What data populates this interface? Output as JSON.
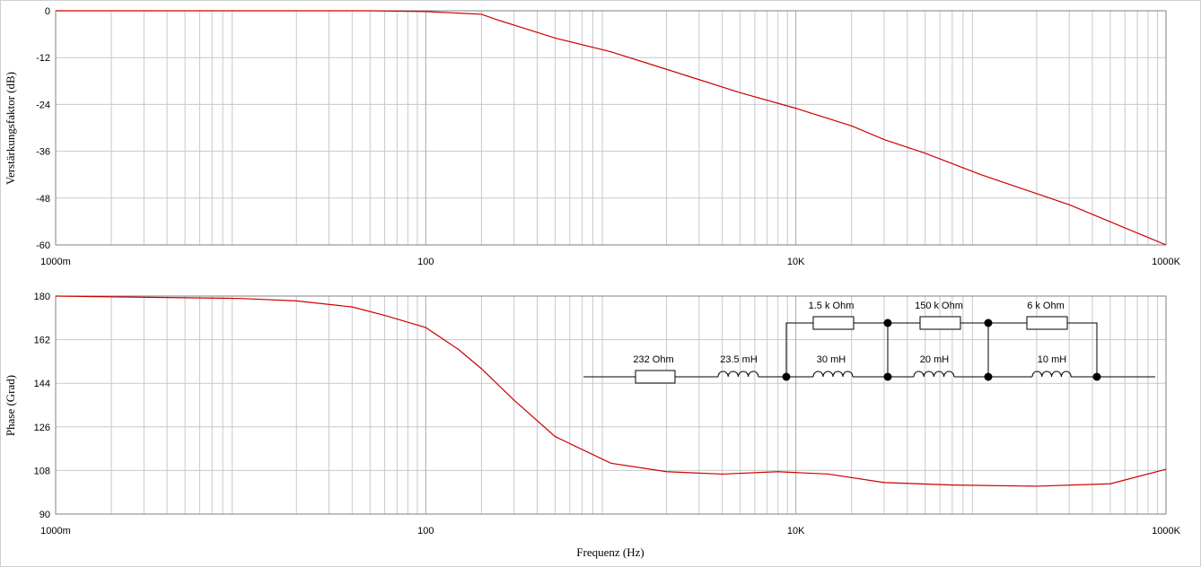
{
  "chart_data": [
    {
      "type": "line",
      "ylabel": "Verstärkungsfaktor (dB)",
      "xscale": "log",
      "grid": true,
      "minor_grid": true,
      "xlim": [
        1,
        1000000
      ],
      "xticks": [
        {
          "value": 1,
          "label": "1000m"
        },
        100,
        {
          "value": 10000,
          "label": "10K"
        },
        {
          "value": 1000000,
          "label": "1000K"
        }
      ],
      "ylim": [
        -60,
        0
      ],
      "yticks": [
        -60,
        -48,
        -36,
        -24,
        -12,
        0
      ],
      "series": [
        {
          "color": "#cc0000",
          "x": [
            1,
            10,
            50,
            100,
            200,
            250,
            316,
            500,
            1000,
            2000,
            5000,
            10000,
            20000,
            30000,
            50000,
            100000,
            300000,
            1000000
          ],
          "values": [
            0,
            0,
            0,
            -0.2,
            -0.9,
            -2.5,
            -4,
            -7,
            -10.5,
            -15,
            -21,
            -25,
            -29.5,
            -33,
            -36.5,
            -42,
            -49.7,
            -60
          ]
        }
      ]
    },
    {
      "type": "line",
      "ylabel": "Phase (Grad)",
      "xlabel": "Frequenz (Hz)",
      "xscale": "log",
      "grid": true,
      "minor_grid": true,
      "xlim": [
        1,
        1000000
      ],
      "xticks": [
        {
          "value": 1,
          "label": "1000m"
        },
        100,
        {
          "value": 10000,
          "label": "10K"
        },
        {
          "value": 1000000,
          "label": "1000K"
        }
      ],
      "ylim": [
        90,
        180
      ],
      "yticks": [
        90,
        108,
        126,
        144,
        162,
        180
      ],
      "series": [
        {
          "color": "#cc0000",
          "x": [
            1,
            10,
            20,
            40,
            60,
            100,
            150,
            200,
            300,
            500,
            1000,
            2000,
            4000,
            8000,
            15000,
            30000,
            70000,
            200000,
            500000,
            1000000
          ],
          "values": [
            180,
            179,
            178,
            175.5,
            172,
            167,
            158,
            150,
            137,
            122,
            111,
            107.5,
            106.5,
            107.5,
            106.5,
            103,
            102,
            101.5,
            102.5,
            108.5
          ]
        }
      ],
      "circuit": {
        "labels": [
          "232  Ohm",
          "23.5 mH",
          "1.5 k Ohm",
          "30 mH",
          "150 k Ohm",
          "20 mH",
          "6 k Ohm",
          "10 mH"
        ]
      }
    }
  ]
}
